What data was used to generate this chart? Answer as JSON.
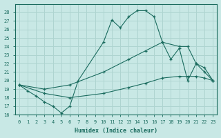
{
  "background_color": "#c8e8e5",
  "grid_color": "#aed4d0",
  "line_color": "#1a6b5e",
  "xlabel": "Humidex (Indice chaleur)",
  "xlim": [
    -0.5,
    23.5
  ],
  "ylim": [
    16,
    29
  ],
  "yticks": [
    16,
    17,
    18,
    19,
    20,
    21,
    22,
    23,
    24,
    25,
    26,
    27,
    28
  ],
  "xticks": [
    0,
    1,
    2,
    3,
    4,
    5,
    6,
    7,
    8,
    9,
    10,
    11,
    12,
    13,
    14,
    15,
    16,
    17,
    18,
    19,
    20,
    21,
    22,
    23
  ],
  "line1_x": [
    0,
    1,
    2,
    3,
    4,
    5,
    6,
    7,
    10,
    11,
    12,
    13,
    14,
    15,
    16,
    17,
    18,
    19,
    20,
    21,
    22,
    23
  ],
  "line1_y": [
    19.5,
    18.8,
    18.2,
    17.5,
    17.0,
    16.2,
    17.0,
    20.0,
    24.5,
    27.1,
    26.2,
    27.5,
    28.2,
    28.2,
    27.5,
    24.5,
    22.5,
    23.8,
    20.0,
    22.0,
    21.0,
    20.0
  ],
  "line2_x": [
    0,
    3,
    6,
    10,
    13,
    15,
    17,
    19,
    20,
    21,
    22,
    23
  ],
  "line2_y": [
    19.5,
    19.0,
    19.5,
    21.0,
    22.5,
    23.5,
    24.5,
    24.0,
    24.0,
    22.0,
    21.5,
    20.0
  ],
  "line3_x": [
    0,
    3,
    6,
    10,
    13,
    15,
    17,
    19,
    20,
    21,
    22,
    23
  ],
  "line3_y": [
    19.5,
    18.5,
    18.0,
    18.5,
    19.2,
    19.7,
    20.3,
    20.5,
    20.5,
    20.5,
    20.3,
    20.0
  ]
}
